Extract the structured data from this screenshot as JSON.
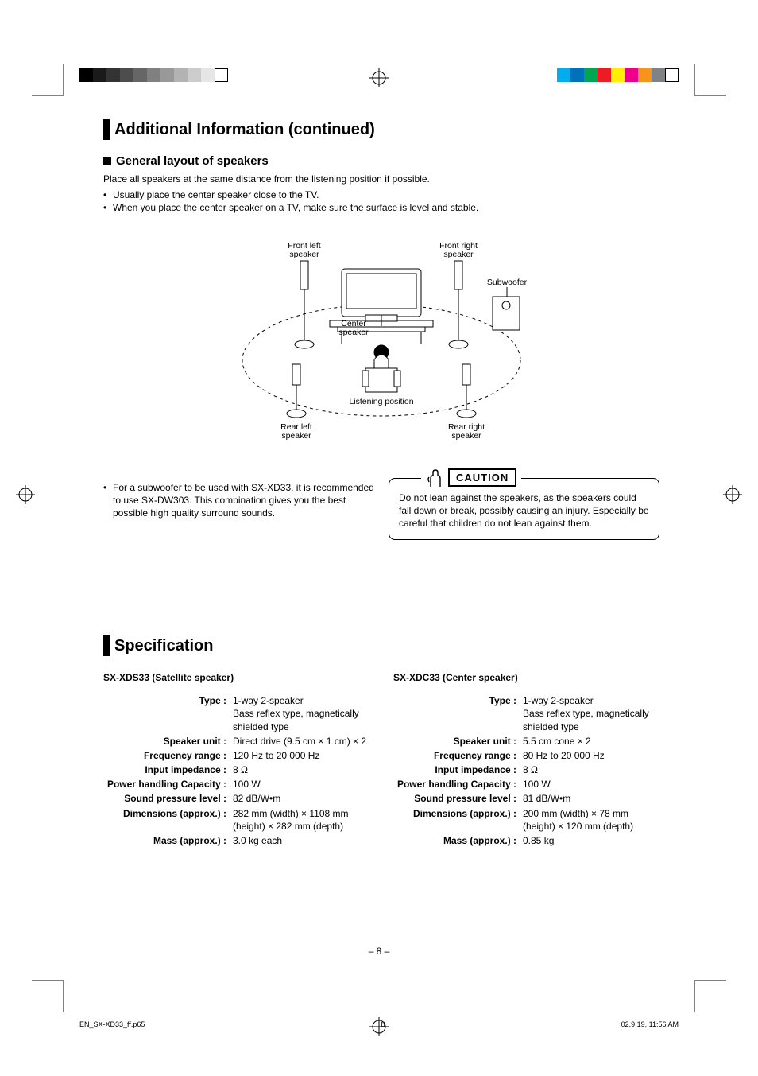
{
  "colorbar_left": [
    "#000000",
    "#1a1a1a",
    "#333333",
    "#4d4d4d",
    "#666666",
    "#808080",
    "#999999",
    "#b3b3b3",
    "#cccccc",
    "#e6e6e6",
    "#ffffff"
  ],
  "colorbar_right": [
    "#00aeef",
    "#0072bc",
    "#00a651",
    "#ed1c24",
    "#fff200",
    "#ec008c",
    "#f7941d",
    "#808285",
    "#ffffff"
  ],
  "header": {
    "title": "Additional Information (continued)"
  },
  "layout": {
    "subhead": "General layout of speakers",
    "intro": "Place all speakers at the same distance from the listening position if possible.",
    "bullets": [
      "Usually place the center speaker close to the TV.",
      "When you place the center speaker on a TV, make sure the surface is level and stable."
    ]
  },
  "diagram": {
    "labels": {
      "front_left": "Front left speaker",
      "front_right": "Front right speaker",
      "subwoofer": "Subwoofer",
      "center": "Center speaker",
      "listening": "Listening position",
      "rear_left": "Rear left speaker",
      "rear_right": "Rear right speaker"
    }
  },
  "note_bullet": "For a subwoofer to be used with SX-XD33, it is recommended to use SX-DW303. This combination gives you the best possible high quality surround sounds.",
  "caution": {
    "label": "CAUTION",
    "text": "Do not lean against the speakers, as the speakers could fall down or break, possibly causing an injury. Especially be careful that children do not lean against them."
  },
  "spec_header": "Specification",
  "spec_left": {
    "model": "SX-XDS33 (Satellite speaker)",
    "rows": [
      {
        "label": "Type",
        "value": "1-way 2-speaker\nBass reflex type, magnetically shielded type"
      },
      {
        "label": "Speaker unit",
        "value": "Direct drive (9.5 cm × 1 cm) × 2"
      },
      {
        "label": "Frequency range",
        "value": "120 Hz to 20 000 Hz"
      },
      {
        "label": "Input impedance",
        "value": "8 Ω"
      },
      {
        "label": "Power handling Capacity",
        "value": "100 W"
      },
      {
        "label": "Sound pressure level",
        "value": "82 dB/W•m"
      },
      {
        "label": "Dimensions (approx.)",
        "value": "282 mm (width) × 1108 mm (height) × 282 mm (depth)"
      },
      {
        "label": "Mass (approx.)",
        "value": "3.0 kg each"
      }
    ]
  },
  "spec_right": {
    "model": "SX-XDC33 (Center speaker)",
    "rows": [
      {
        "label": "Type",
        "value": "1-way 2-speaker\nBass reflex type, magnetically shielded type"
      },
      {
        "label": "Speaker unit",
        "value": "5.5 cm cone × 2"
      },
      {
        "label": "Frequency range",
        "value": "80 Hz to 20 000 Hz"
      },
      {
        "label": "Input impedance",
        "value": "8 Ω"
      },
      {
        "label": "Power handling Capacity",
        "value": "100 W"
      },
      {
        "label": "Sound pressure level",
        "value": "81 dB/W•m"
      },
      {
        "label": "Dimensions (approx.)",
        "value": "200 mm (width) × 78 mm (height) × 120 mm (depth)"
      },
      {
        "label": "Mass (approx.)",
        "value": "0.85 kg"
      }
    ]
  },
  "footer": {
    "page_number": "– 8 –",
    "file": "EN_SX-XD33_ff.p65",
    "sheet": "8",
    "timestamp": "02.9.19, 11:56 AM"
  }
}
